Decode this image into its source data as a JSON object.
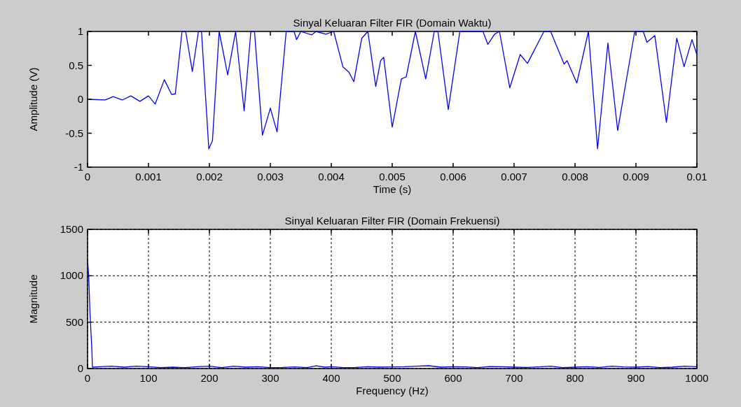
{
  "chart_data": [
    {
      "type": "line",
      "title": "Sinyal Keluaran Filter FIR (Domain Waktu)",
      "xlabel": "Time (s)",
      "ylabel": "Amplitude (V)",
      "xlim": [
        0,
        0.01
      ],
      "ylim": [
        -1,
        1
      ],
      "xticks": [
        0,
        0.001,
        0.002,
        0.003,
        0.004,
        0.005,
        0.006,
        0.007,
        0.008,
        0.009,
        0.01
      ],
      "yticks": [
        -1,
        -0.5,
        0,
        0.5,
        1
      ],
      "grid": false,
      "series": [
        {
          "color": "#0000ff",
          "x": [
            0,
            0.00029,
            0.00042,
            0.00057,
            0.00071,
            0.00086,
            0.001,
            0.00111,
            0.00126,
            0.00138,
            0.00144,
            0.00155,
            0.00161,
            0.00172,
            0.00182,
            0.00187,
            0.00199,
            0.00205,
            0.00216,
            0.0023,
            0.00243,
            0.00257,
            0.00268,
            0.00274,
            0.00287,
            0.003,
            0.00311,
            0.00326,
            0.00339,
            0.00343,
            0.0035,
            0.00368,
            0.00375,
            0.00391,
            0.00404,
            0.00419,
            0.00429,
            0.00437,
            0.0045,
            0.0046,
            0.00473,
            0.00481,
            0.00486,
            0.005,
            0.00515,
            0.00523,
            0.00538,
            0.00555,
            0.00569,
            0.00575,
            0.00592,
            0.00611,
            0.00649,
            0.00657,
            0.00668,
            0.00676,
            0.00693,
            0.0071,
            0.00722,
            0.00749,
            0.0076,
            0.00782,
            0.00787,
            0.00803,
            0.00822,
            0.00837,
            0.00854,
            0.0087,
            0.00898,
            0.00912,
            0.00918,
            0.00931,
            0.0095,
            0.00967,
            0.00979,
            0.00992,
            0.01
          ],
          "values": [
            0,
            -0.01,
            0.04,
            -0.01,
            0.05,
            -0.03,
            0.05,
            -0.07,
            0.29,
            0.07,
            0.08,
            1,
            1,
            0.41,
            1,
            1,
            -0.73,
            -0.61,
            1,
            0.36,
            1,
            -0.17,
            1,
            1,
            -0.53,
            -0.13,
            -0.48,
            1,
            1,
            0.88,
            1,
            0.95,
            1,
            0.96,
            1,
            0.48,
            0.4,
            0.26,
            0.9,
            1,
            0.19,
            0.57,
            0.62,
            -0.41,
            0.3,
            0.33,
            1,
            0.3,
            1,
            1,
            -0.15,
            1,
            1,
            0.81,
            0.96,
            1,
            0.17,
            0.66,
            0.53,
            1,
            1,
            0.52,
            0.57,
            0.24,
            1,
            -0.73,
            0.83,
            -0.46,
            1,
            1,
            0.84,
            0.94,
            -0.34,
            0.9,
            0.48,
            0.88,
            0.66
          ]
        }
      ]
    },
    {
      "type": "line",
      "title": "Sinyal Keluaran Filter FIR (Domain Frekuensi)",
      "xlabel": "Frequency (Hz)",
      "ylabel": "Magnitude",
      "xlim": [
        0,
        1000
      ],
      "ylim": [
        0,
        1500
      ],
      "xticks": [
        0,
        100,
        200,
        300,
        400,
        500,
        600,
        700,
        800,
        900,
        1000
      ],
      "yticks": [
        0,
        500,
        1000,
        1500
      ],
      "grid": true,
      "series": [
        {
          "color": "#0000ff",
          "x": [
            0,
            2,
            4,
            7,
            8,
            20,
            40,
            60,
            80,
            100,
            120,
            140,
            160,
            180,
            200,
            220,
            240,
            260,
            280,
            300,
            320,
            340,
            360,
            375,
            390,
            400,
            420,
            440,
            460,
            480,
            500,
            520,
            540,
            560,
            580,
            600,
            620,
            640,
            660,
            680,
            700,
            720,
            740,
            760,
            780,
            800,
            820,
            840,
            860,
            880,
            900,
            920,
            940,
            960,
            980,
            1000
          ],
          "values": [
            1180,
            985,
            595,
            215,
            15,
            20,
            25,
            15,
            25,
            20,
            10,
            15,
            10,
            20,
            25,
            10,
            25,
            15,
            20,
            10,
            12,
            18,
            10,
            30,
            15,
            20,
            10,
            12,
            20,
            15,
            18,
            20,
            25,
            30,
            15,
            20,
            18,
            10,
            22,
            20,
            15,
            12,
            18,
            25,
            10,
            15,
            20,
            12,
            25,
            18,
            15,
            22,
            10,
            15,
            25,
            20
          ]
        }
      ]
    }
  ]
}
